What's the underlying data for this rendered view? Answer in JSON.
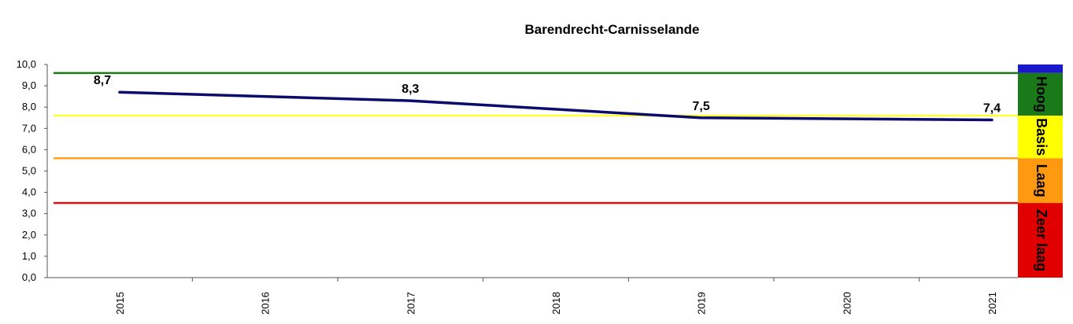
{
  "chart_data": {
    "type": "line",
    "title": "Barendrecht-Carnisselande",
    "xlabel": "",
    "ylabel": "",
    "ylim": [
      0,
      10
    ],
    "y_ticks": [
      "0,0",
      "1,0",
      "2,0",
      "3,0",
      "4,0",
      "5,0",
      "6,0",
      "7,0",
      "8,0",
      "9,0",
      "10,0"
    ],
    "categories": [
      "2015",
      "2016",
      "2017",
      "2018",
      "2019",
      "2020",
      "2021"
    ],
    "series": [
      {
        "color": "#0b0b6e",
        "points": [
          {
            "x": "2015",
            "y": 8.7,
            "label": "8,7"
          },
          {
            "x": "2017",
            "y": 8.3,
            "label": "8,3"
          },
          {
            "x": "2019",
            "y": 7.5,
            "label": "7,5"
          },
          {
            "x": "2021",
            "y": 7.4,
            "label": "7,4"
          }
        ]
      }
    ],
    "threshold_lines": [
      {
        "value": 9.6,
        "color": "#1a7a1a"
      },
      {
        "value": 7.6,
        "color": "#ffff33"
      },
      {
        "value": 5.6,
        "color": "#ffa020"
      },
      {
        "value": 3.5,
        "color": "#e01010"
      }
    ],
    "bands": [
      {
        "from": 9.6,
        "to": 10.0,
        "color": "#1a1acc",
        "label": ""
      },
      {
        "from": 7.6,
        "to": 9.6,
        "color": "#1a7a1a",
        "label": "Hoog"
      },
      {
        "from": 5.6,
        "to": 7.6,
        "color": "#ffff00",
        "label": "Basis"
      },
      {
        "from": 3.5,
        "to": 5.6,
        "color": "#ff9a10",
        "label": "Laag"
      },
      {
        "from": 0.0,
        "to": 3.5,
        "color": "#e00000",
        "label": "Zeer laag"
      }
    ],
    "grid": false,
    "legend": "none"
  }
}
